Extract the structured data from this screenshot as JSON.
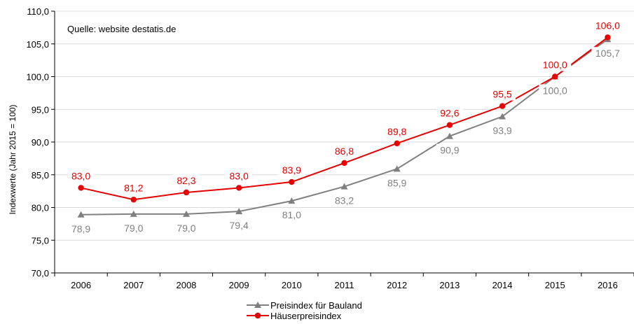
{
  "chart_data": {
    "type": "line",
    "title": "",
    "source_note": "Quelle: website destatis.de",
    "ylabel": "Indexwerte (Jahr 2015 = 100)",
    "xlabel": "",
    "ylim": [
      70,
      110
    ],
    "yticks": [
      70,
      75,
      80,
      85,
      90,
      95,
      100,
      105,
      110
    ],
    "ytick_labels": [
      "70,0",
      "75,0",
      "80,0",
      "85,0",
      "90,0",
      "95,0",
      "100,0",
      "105,0",
      "110,0"
    ],
    "categories": [
      "2006",
      "2007",
      "2008",
      "2009",
      "2010",
      "2011",
      "2012",
      "2013",
      "2014",
      "2015",
      "2016"
    ],
    "grid": "horizontal",
    "legend_position": "bottom",
    "series": [
      {
        "name": "Preisindex für Bauland",
        "color": "#808080",
        "marker": "triangle",
        "label_position": "below",
        "values": [
          78.9,
          79.0,
          79.0,
          79.4,
          81.0,
          83.2,
          85.9,
          90.9,
          93.9,
          100.0,
          105.7
        ],
        "labels": [
          "78,9",
          "79,0",
          "79,0",
          "79,4",
          "81,0",
          "83,2",
          "85,9",
          "90,9",
          "93,9",
          "100,0",
          "105,7"
        ]
      },
      {
        "name": "Häuserpreisindex",
        "color": "#e60000",
        "marker": "circle",
        "label_position": "above",
        "values": [
          83.0,
          81.2,
          82.3,
          83.0,
          83.9,
          86.8,
          89.8,
          92.6,
          95.5,
          100.0,
          106.0
        ],
        "labels": [
          "83,0",
          "81,2",
          "82,3",
          "83,0",
          "83,9",
          "86,8",
          "89,8",
          "92,6",
          "95,5",
          "100,0",
          "106,0"
        ]
      }
    ]
  }
}
